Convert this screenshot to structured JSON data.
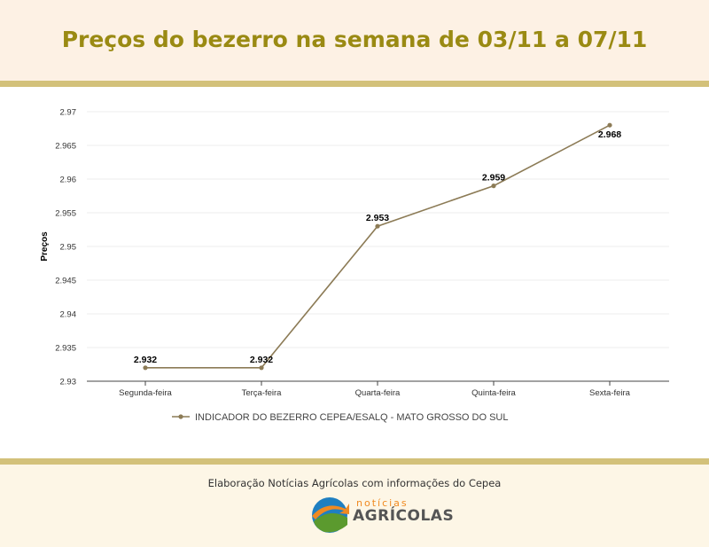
{
  "header": {
    "title": "Preços do bezerro na semana de 03/11 a 07/11"
  },
  "footer": {
    "credit": "Elaboração Notícias Agrícolas com informações do Cepea",
    "logo_small": "notícias",
    "logo_big": "AGRÍCOLAS"
  },
  "colors": {
    "title": "#9a8a13",
    "band": "#d3c17a",
    "series": "#8c7b56",
    "header_bg": "#fdf1e4"
  },
  "chart_data": {
    "type": "line",
    "title": "",
    "xlabel": "",
    "ylabel": "Preços",
    "categories": [
      "Segunda-feira",
      "Terça-feira",
      "Quarta-feira",
      "Quinta-feira",
      "Sexta-feira"
    ],
    "series": [
      {
        "name": "INDICADOR DO BEZERRO CEPEA/ESALQ - MATO GROSSO DO SUL",
        "values": [
          2.932,
          2.932,
          2.953,
          2.959,
          2.968
        ],
        "labels": [
          "2.932",
          "2.932",
          "2.953",
          "2.959",
          "2.968"
        ],
        "color": "#8c7b56"
      }
    ],
    "ylim": [
      2.93,
      2.97
    ],
    "yticks": [
      "2.93",
      "2.935",
      "2.94",
      "2.945",
      "2.95",
      "2.955",
      "2.96",
      "2.965",
      "2.97"
    ],
    "grid": true,
    "legend": "bottom"
  }
}
